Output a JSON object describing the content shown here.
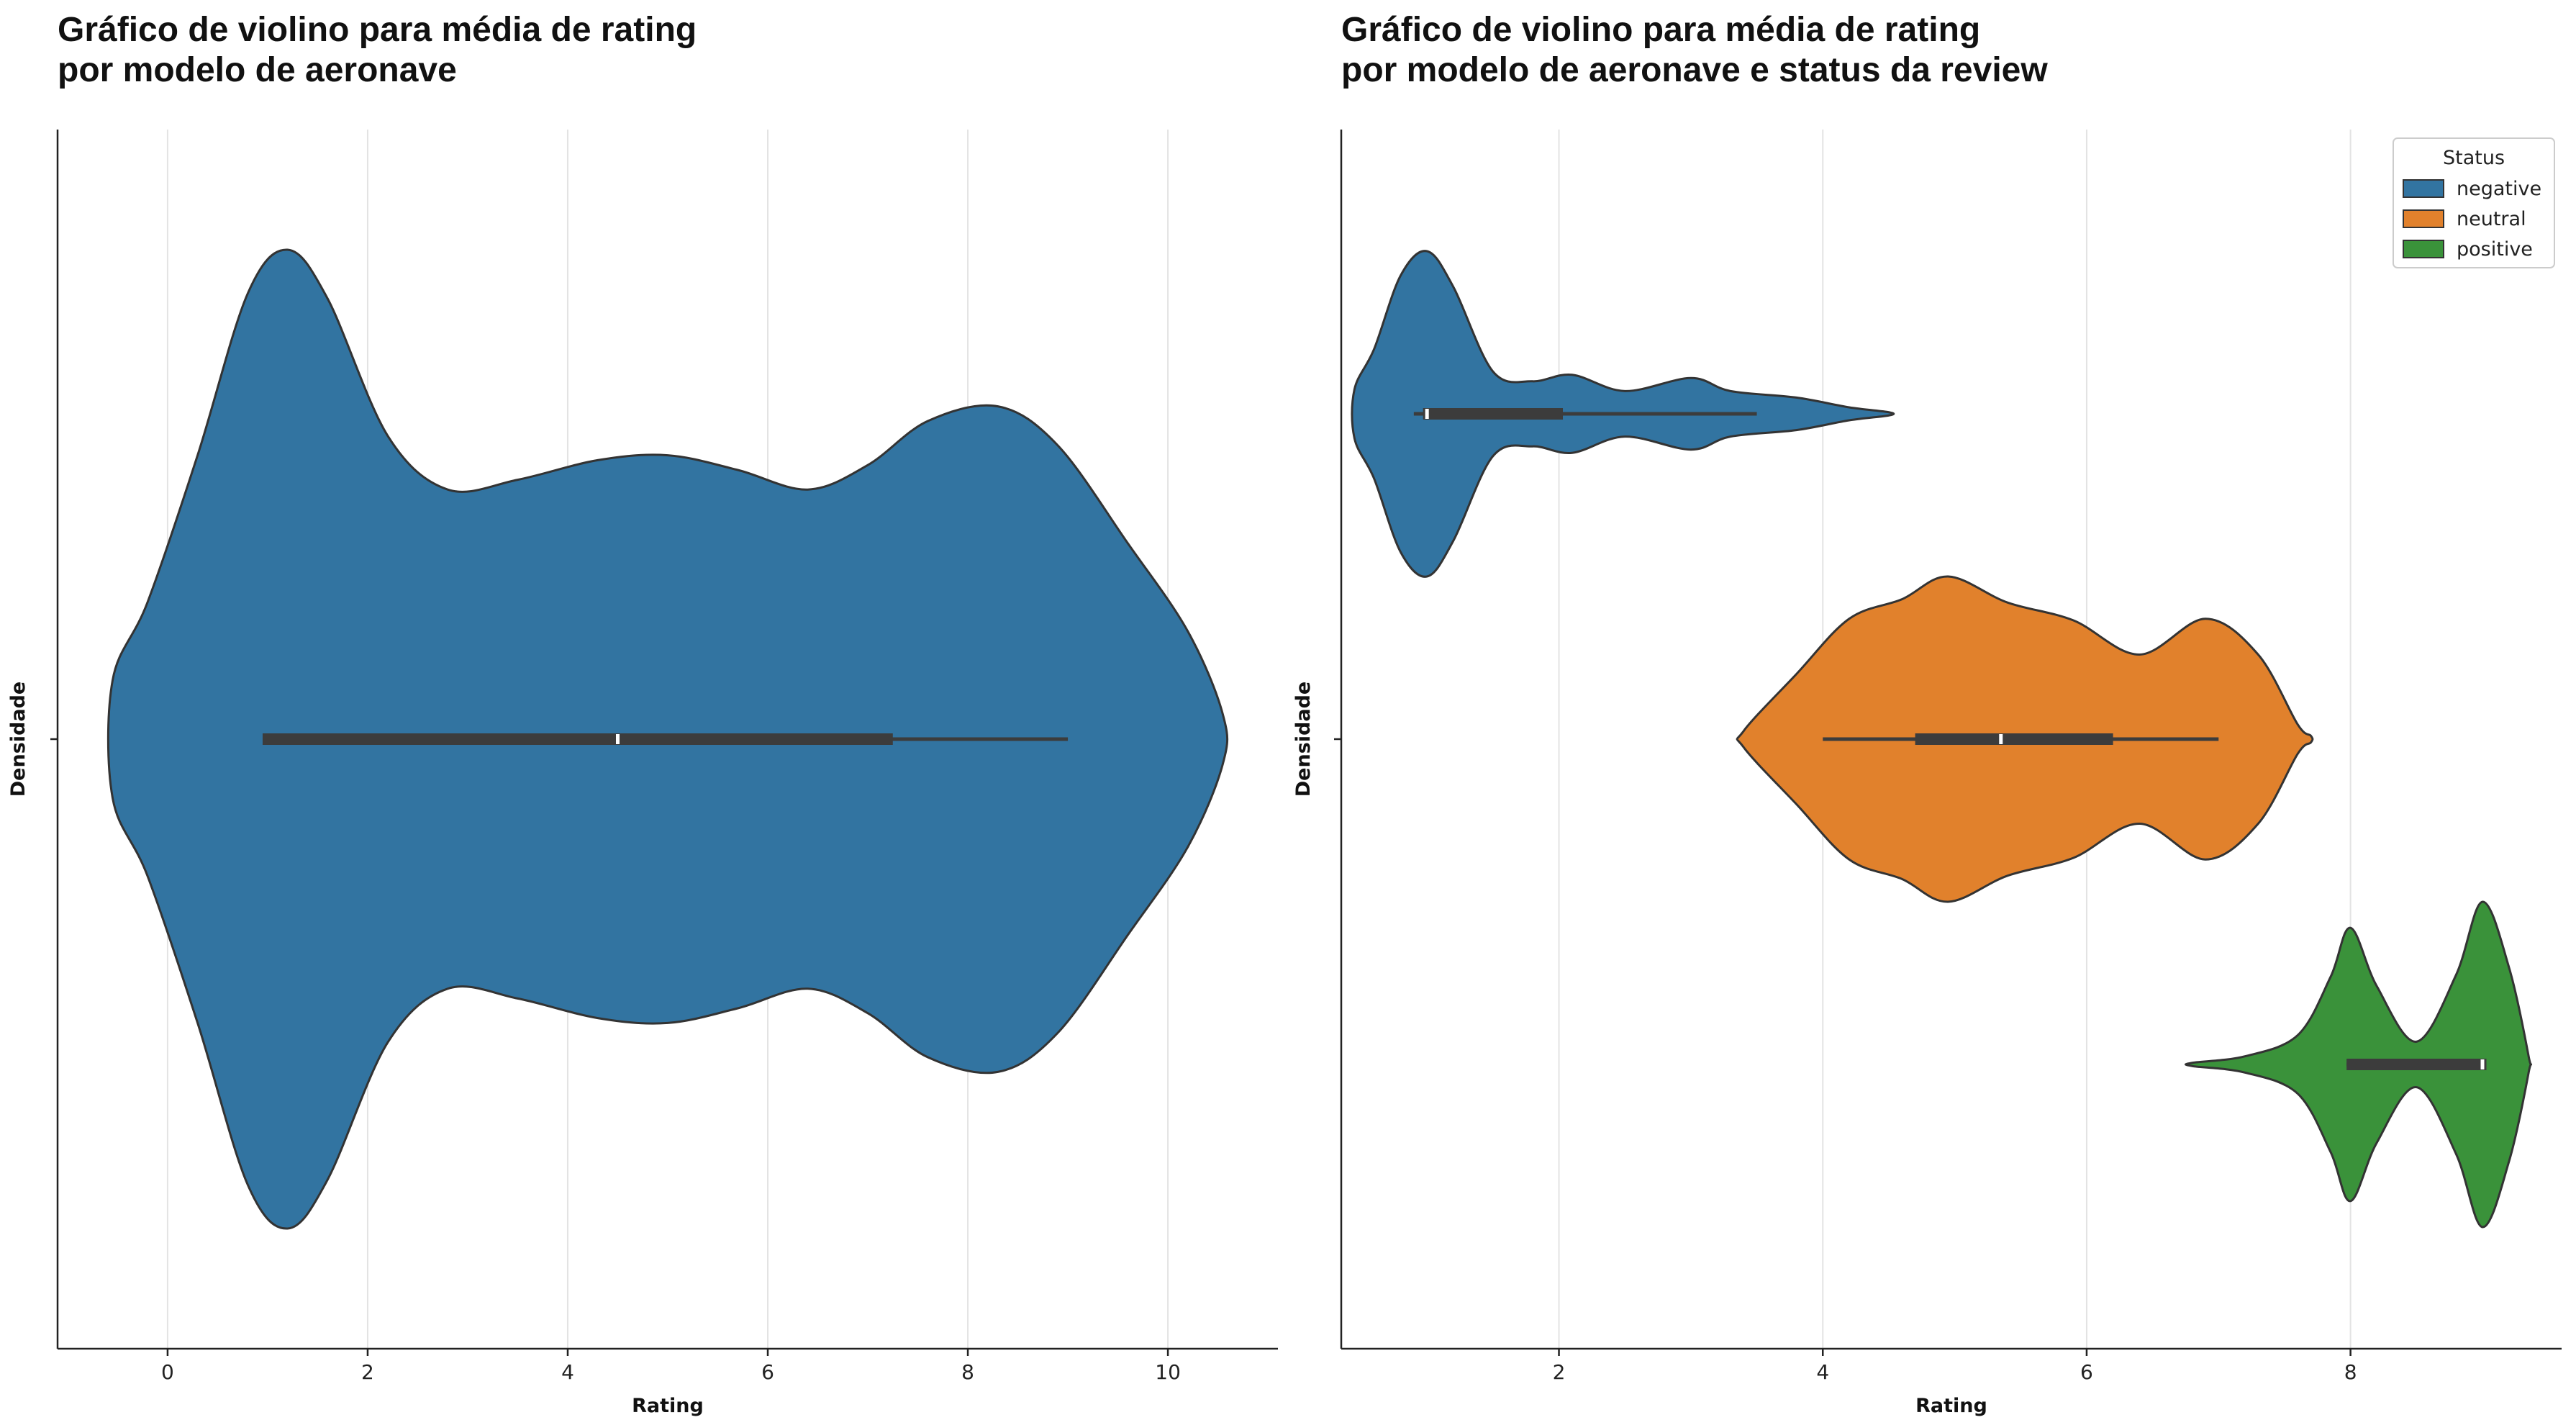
{
  "chart_data": [
    {
      "type": "violin",
      "title_line1": "Gráfico de violino para média de rating",
      "title_line2": "por modelo de aeronave",
      "xlabel": "Rating",
      "ylabel": "Densidade",
      "xlim": [
        -1.1,
        11.1
      ],
      "xticks": [
        0,
        2,
        4,
        6,
        8,
        10
      ],
      "grid": "x",
      "violins": [
        {
          "name": "",
          "color": "#3274a1",
          "density": [
            [
              -0.55,
              0.12
            ],
            [
              -0.2,
              0.28
            ],
            [
              0.3,
              0.58
            ],
            [
              0.8,
              0.91
            ],
            [
              1.2,
              1.0
            ],
            [
              1.6,
              0.9
            ],
            [
              2.2,
              0.62
            ],
            [
              2.8,
              0.51
            ],
            [
              3.5,
              0.53
            ],
            [
              4.3,
              0.57
            ],
            [
              5.0,
              0.58
            ],
            [
              5.7,
              0.55
            ],
            [
              6.4,
              0.51
            ],
            [
              7.0,
              0.56
            ],
            [
              7.6,
              0.65
            ],
            [
              8.3,
              0.68
            ],
            [
              8.9,
              0.6
            ],
            [
              9.6,
              0.4
            ],
            [
              10.2,
              0.22
            ],
            [
              10.55,
              0.05
            ]
          ],
          "whisker": [
            0.95,
            9.0
          ],
          "box": [
            0.95,
            7.25
          ],
          "median": 4.5
        }
      ]
    },
    {
      "type": "violin",
      "title_line1": "Gráfico de violino para média de rating",
      "title_line2": "por modelo de aeronave e status da review",
      "xlabel": "Rating",
      "ylabel": "Densidade",
      "xlim": [
        0.35,
        9.6
      ],
      "xticks": [
        2,
        4,
        6,
        8
      ],
      "grid": "x",
      "legend": {
        "title": "Status",
        "position": "top-right",
        "entries": [
          {
            "label": "negative",
            "color": "#3274a1"
          },
          {
            "label": "neutral",
            "color": "#e1812c"
          },
          {
            "label": "positive",
            "color": "#3a923a"
          }
        ]
      },
      "violins": [
        {
          "name": "negative",
          "color": "#3274a1",
          "density": [
            [
              0.45,
              0.15
            ],
            [
              0.6,
              0.4
            ],
            [
              0.8,
              0.85
            ],
            [
              1.0,
              1.0
            ],
            [
              1.2,
              0.78
            ],
            [
              1.5,
              0.26
            ],
            [
              1.8,
              0.2
            ],
            [
              2.1,
              0.24
            ],
            [
              2.5,
              0.14
            ],
            [
              3.0,
              0.22
            ],
            [
              3.3,
              0.14
            ],
            [
              3.8,
              0.1
            ],
            [
              4.2,
              0.04
            ],
            [
              4.5,
              0.01
            ]
          ],
          "whisker": [
            0.9,
            3.5
          ],
          "box": [
            0.97,
            2.03
          ],
          "median": 1.0
        },
        {
          "name": "neutral",
          "color": "#e1812c",
          "density": [
            [
              3.4,
              0.05
            ],
            [
              3.8,
              0.4
            ],
            [
              4.2,
              0.74
            ],
            [
              4.6,
              0.86
            ],
            [
              4.95,
              1.0
            ],
            [
              5.4,
              0.84
            ],
            [
              5.9,
              0.73
            ],
            [
              6.4,
              0.52
            ],
            [
              6.9,
              0.74
            ],
            [
              7.3,
              0.52
            ],
            [
              7.6,
              0.09
            ],
            [
              7.7,
              0.02
            ]
          ],
          "whisker": [
            4.0,
            7.0
          ],
          "box": [
            4.7,
            6.2
          ],
          "median": 5.35
        },
        {
          "name": "positive",
          "color": "#3a923a",
          "density": [
            [
              6.8,
              0.01
            ],
            [
              7.2,
              0.05
            ],
            [
              7.6,
              0.18
            ],
            [
              7.85,
              0.54
            ],
            [
              8.0,
              0.84
            ],
            [
              8.2,
              0.48
            ],
            [
              8.5,
              0.14
            ],
            [
              8.8,
              0.55
            ],
            [
              9.0,
              1.0
            ],
            [
              9.2,
              0.6
            ],
            [
              9.35,
              0.05
            ]
          ],
          "whisker": [
            7.97,
            9.03
          ],
          "box": [
            7.97,
            9.03
          ],
          "median": 9.0
        }
      ]
    }
  ]
}
